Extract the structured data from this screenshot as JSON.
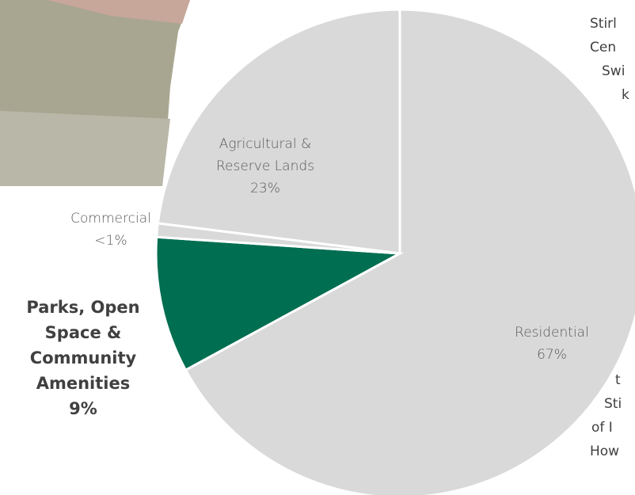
{
  "chart_data": {
    "type": "pie",
    "categories": [
      "Residential",
      "Parks, Open Space & Community Amenities",
      "Commercial",
      "Agricultural & Reserve Lands"
    ],
    "values": [
      67,
      9,
      0.9,
      23
    ],
    "value_labels": [
      "67%",
      "9%",
      "<1%",
      "23%"
    ],
    "colors": [
      "#d9d9d9",
      "#006e51",
      "#d9d9d9",
      "#d9d9d9"
    ],
    "start_angle": 0,
    "direction": "clockwise"
  },
  "background_text": [
    "Stirl",
    "Cen",
    "Swi",
    "k",
    "t",
    "Sti",
    "of I",
    "How"
  ]
}
